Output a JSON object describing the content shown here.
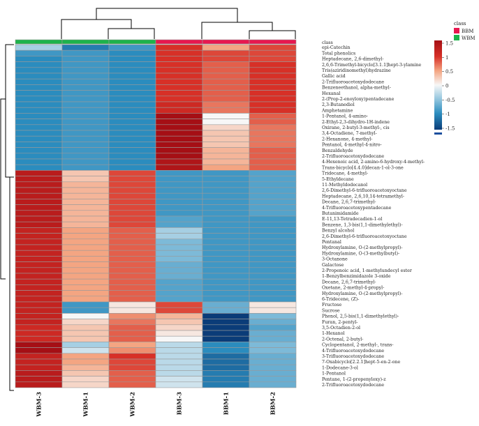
{
  "chart_data": {
    "type": "heatmap",
    "title": "",
    "class_row_label": "class",
    "columns": [
      "WBM-3",
      "WBM-1",
      "WBM-2",
      "BBM-3",
      "BBM-1",
      "BBM-2"
    ],
    "column_classes": [
      "WBM",
      "WBM",
      "WBM",
      "BBM",
      "BBM",
      "BBM"
    ],
    "legend": {
      "title": "class",
      "entries": [
        {
          "label": "BBM",
          "color": "#e8174f"
        },
        {
          "label": "WBM",
          "color": "#1db34b"
        }
      ]
    },
    "colorbar": {
      "range": [
        -1.5,
        1.5
      ],
      "ticks": [
        "1.5",
        "1",
        "0.5",
        "0",
        "-0.5",
        "-1",
        "-1.5"
      ],
      "low_color": "#1c4f9e",
      "mid_color": "#f7f7f7",
      "high_color": "#b2182b"
    },
    "rows": [
      {
        "label": "epi-Catechin",
        "values": [
          -0.4,
          -1.1,
          -0.9,
          1.0,
          0.5,
          0.9
        ]
      },
      {
        "label": "Total phenolics",
        "values": [
          -0.9,
          -0.9,
          -1.0,
          1.0,
          0.9,
          0.9
        ]
      },
      {
        "label": "Heptadecane, 2,6-dimethyl-",
        "values": [
          -1.0,
          -0.9,
          -1.0,
          1.0,
          0.9,
          0.9
        ]
      },
      {
        "label": "2,6,6-Trimethyl-bicyclo[3.1.1]hept-3-ylamine",
        "values": [
          -1.0,
          -0.9,
          -1.0,
          1.0,
          0.8,
          1.0
        ]
      },
      {
        "label": "Tris(aziridinomethyl)hydrazine",
        "values": [
          -1.0,
          -0.9,
          -1.0,
          1.0,
          0.8,
          1.0
        ]
      },
      {
        "label": "Gallic acid",
        "values": [
          -1.0,
          -0.9,
          -1.0,
          1.0,
          0.8,
          1.0
        ]
      },
      {
        "label": "2-Trifluoroacetoxydodecane",
        "values": [
          -1.0,
          -0.9,
          -1.0,
          1.0,
          0.8,
          1.0
        ]
      },
      {
        "label": "Benzeneethanol, alpha-methyl-",
        "values": [
          -1.0,
          -0.9,
          -1.0,
          1.0,
          0.8,
          1.0
        ]
      },
      {
        "label": "Hexanal",
        "values": [
          -1.0,
          -0.9,
          -1.0,
          1.0,
          0.8,
          1.0
        ]
      },
      {
        "label": "2-(Prop-2-enoyloxy)pentadecane",
        "values": [
          -1.0,
          -0.9,
          -1.0,
          1.0,
          0.8,
          1.0
        ]
      },
      {
        "label": "2,3-Butanediol",
        "values": [
          -1.0,
          -0.9,
          -1.0,
          1.1,
          0.7,
          1.0
        ]
      },
      {
        "label": "Amphetamine",
        "values": [
          -1.0,
          -0.9,
          -1.0,
          1.1,
          0.7,
          1.0
        ]
      },
      {
        "label": "1-Pentanol, 4-amino-",
        "values": [
          -1.0,
          -0.9,
          -1.0,
          1.6,
          0.0,
          0.8
        ]
      },
      {
        "label": "2-Ethyl-2,3-dihydro-1H-indene",
        "values": [
          -1.0,
          -0.9,
          -1.0,
          1.6,
          0.0,
          0.8
        ]
      },
      {
        "label": "Oxirane, 2-butyl-3-methyl-, cis",
        "values": [
          -1.0,
          -0.9,
          -1.0,
          1.6,
          0.2,
          0.7
        ]
      },
      {
        "label": "3,4-Octadiene, 7-methyl-",
        "values": [
          -1.0,
          -0.9,
          -1.0,
          1.6,
          0.3,
          0.7
        ]
      },
      {
        "label": "2-Hexanone, 4-methyl-",
        "values": [
          -1.0,
          -0.9,
          -1.0,
          1.6,
          0.3,
          0.7
        ]
      },
      {
        "label": "Pentanol, 4-methyl-4-nitro-",
        "values": [
          -1.0,
          -0.9,
          -1.0,
          1.6,
          0.3,
          0.7
        ]
      },
      {
        "label": "Benzaldehyde",
        "values": [
          -1.0,
          -0.9,
          -1.0,
          1.5,
          0.4,
          0.8
        ]
      },
      {
        "label": "2-Trifluoroacetoxydodecane",
        "values": [
          -1.0,
          -0.9,
          -1.0,
          1.5,
          0.4,
          0.8
        ]
      },
      {
        "label": "4-Hexenoic acid, 2-amino-6-hydroxy-4-methyl-",
        "values": [
          -1.0,
          -0.9,
          -1.0,
          1.4,
          0.4,
          0.8
        ]
      },
      {
        "label": "Trans-bicyclo[4.4.0]decan-1-ol-3-one",
        "values": [
          -1.0,
          -0.9,
          -1.0,
          1.4,
          0.5,
          0.8
        ]
      },
      {
        "label": "Tridecane, 4-methyl-",
        "values": [
          1.3,
          0.3,
          0.9,
          -0.9,
          -0.9,
          -0.8
        ]
      },
      {
        "label": "5-Ethyldecane",
        "values": [
          1.3,
          0.3,
          0.9,
          -0.9,
          -0.9,
          -0.8
        ]
      },
      {
        "label": "11-Methyldodecanol",
        "values": [
          1.3,
          0.4,
          0.9,
          -0.9,
          -0.9,
          -0.8
        ]
      },
      {
        "label": "2,6-Dimethyl-6-trifluoroacetoxyoctane",
        "values": [
          1.3,
          0.4,
          0.9,
          -0.9,
          -0.9,
          -0.8
        ]
      },
      {
        "label": "Heptadecane, 2,6,10,14-tetramethyl-",
        "values": [
          1.3,
          0.4,
          0.9,
          -0.9,
          -0.9,
          -0.8
        ]
      },
      {
        "label": "Decane, 2,6,7-trimethyl-",
        "values": [
          1.3,
          0.4,
          0.9,
          -0.9,
          -0.9,
          -0.8
        ]
      },
      {
        "label": "4-Trifluoroacetoxypentadecane",
        "values": [
          1.3,
          0.4,
          0.9,
          -0.9,
          -0.9,
          -0.8
        ]
      },
      {
        "label": "Butanimidamide",
        "values": [
          1.3,
          0.4,
          0.9,
          -0.9,
          -0.9,
          -0.8
        ]
      },
      {
        "label": "E-11,13-Tetradecadien-1-ol",
        "values": [
          1.3,
          0.4,
          0.9,
          -0.8,
          -0.9,
          -0.9
        ]
      },
      {
        "label": "Benzene, 1,3-bis(1,1-dimethylethyl)-",
        "values": [
          1.3,
          0.4,
          0.9,
          -0.8,
          -0.9,
          -0.9
        ]
      },
      {
        "label": "Benzyl alcohol",
        "values": [
          1.2,
          0.5,
          0.8,
          -0.4,
          -0.9,
          -0.9
        ]
      },
      {
        "label": "2,6-Dimethyl-6-trifluoroacetoxyoctane",
        "values": [
          1.2,
          0.5,
          0.8,
          -0.4,
          -0.9,
          -0.9
        ]
      },
      {
        "label": "Pentanal",
        "values": [
          1.2,
          0.5,
          0.8,
          -0.6,
          -0.9,
          -0.9
        ]
      },
      {
        "label": "Hydroxylamine, O-(2-methylpropyl)-",
        "values": [
          1.2,
          0.5,
          0.8,
          -0.6,
          -0.9,
          -0.9
        ]
      },
      {
        "label": "Hydroxylamine, O-(3-methylbutyl)-",
        "values": [
          1.2,
          0.5,
          0.8,
          -0.6,
          -0.9,
          -0.9
        ]
      },
      {
        "label": "3-Octanone",
        "values": [
          1.2,
          0.5,
          0.8,
          -0.6,
          -0.9,
          -0.9
        ]
      },
      {
        "label": "Galactose",
        "values": [
          1.2,
          0.5,
          0.8,
          -0.7,
          -0.9,
          -0.9
        ]
      },
      {
        "label": "2-Propenoic acid, 1-methylundecyl ester",
        "values": [
          1.2,
          0.5,
          0.8,
          -0.7,
          -0.9,
          -0.9
        ]
      },
      {
        "label": "1-Benzylbenzimidazole 3-oxide",
        "values": [
          1.2,
          0.5,
          0.8,
          -0.7,
          -0.9,
          -0.9
        ]
      },
      {
        "label": "Decane, 2,6,7-trimethyl-",
        "values": [
          1.2,
          0.5,
          0.8,
          -0.8,
          -0.9,
          -0.9
        ]
      },
      {
        "label": "Oxetane, 2-methyl-4-propyl-",
        "values": [
          1.2,
          0.5,
          0.8,
          -0.8,
          -0.9,
          -0.9
        ]
      },
      {
        "label": "Hydroxylamine, O-(2-methylpropyl)-",
        "values": [
          1.2,
          0.5,
          0.8,
          -0.8,
          -0.9,
          -0.9
        ]
      },
      {
        "label": "6-Tridecene, (Z)-",
        "values": [
          1.2,
          0.5,
          0.8,
          -0.8,
          -0.9,
          -0.9
        ]
      },
      {
        "label": "Fructose",
        "values": [
          1.2,
          -0.9,
          0.1,
          0.9,
          -0.7,
          0.1
        ]
      },
      {
        "label": "Sucrose",
        "values": [
          1.2,
          -0.9,
          0.1,
          0.9,
          -0.7,
          0.1
        ]
      },
      {
        "label": "Phenol, 2,5-bis(1,1-dimethylethyl)-",
        "values": [
          1.2,
          0.0,
          0.6,
          0.4,
          -1.5,
          -0.6
        ]
      },
      {
        "label": "Furan, 2-pentyl-",
        "values": [
          1.2,
          0.2,
          0.7,
          0.3,
          -1.5,
          -0.7
        ]
      },
      {
        "label": "3,5-Octadien-2-ol",
        "values": [
          1.1,
          0.3,
          0.8,
          0.2,
          -1.5,
          -0.8
        ]
      },
      {
        "label": "1-Hexanol",
        "values": [
          1.1,
          0.3,
          0.8,
          0.1,
          -1.6,
          -0.7
        ]
      },
      {
        "label": "2-Octenal, 2-butyl-",
        "values": [
          1.1,
          0.3,
          0.8,
          0.0,
          -1.5,
          -0.7
        ]
      },
      {
        "label": "Cyclopentanol, 2-methyl-, trans-",
        "values": [
          1.7,
          -0.4,
          0.5,
          -0.3,
          -1.0,
          -0.6
        ]
      },
      {
        "label": "4-Trifluoroacetoxydodecane",
        "values": [
          1.6,
          -0.2,
          0.6,
          -0.3,
          -1.0,
          -0.6
        ]
      },
      {
        "label": "3-Trifluoroacetoxydodecane",
        "values": [
          1.2,
          0.5,
          1.0,
          -0.3,
          -1.2,
          -0.7
        ]
      },
      {
        "label": "7-Oxabicyclo[2.2.1]hept-5-en-2-one",
        "values": [
          1.2,
          0.5,
          0.9,
          -0.3,
          -1.2,
          -0.7
        ]
      },
      {
        "label": "1-Dodecane-3-ol",
        "values": [
          1.2,
          0.4,
          0.9,
          -0.3,
          -1.2,
          -0.7
        ]
      },
      {
        "label": "1-Pentanol",
        "values": [
          1.3,
          0.3,
          0.8,
          -0.3,
          -1.1,
          -0.7
        ]
      },
      {
        "label": "Pentane, 1-(2-propenyloxy)-z",
        "values": [
          1.3,
          0.2,
          0.8,
          -0.2,
          -1.1,
          -0.7
        ]
      },
      {
        "label": "2-Trifluoroacetoxydodecane",
        "values": [
          1.3,
          0.2,
          0.8,
          -0.2,
          -1.1,
          -0.7
        ]
      }
    ]
  }
}
